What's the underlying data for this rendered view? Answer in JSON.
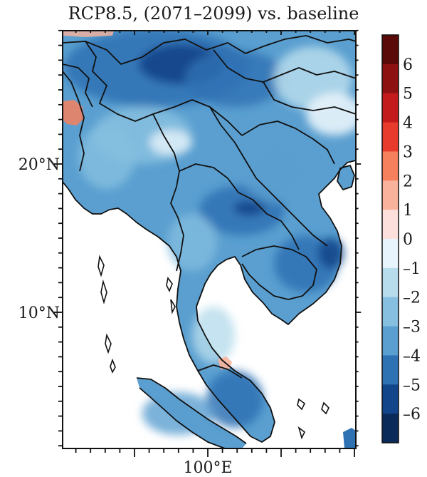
{
  "map": {
    "title": "RCP8.5, (2071–2099) vs. baseline",
    "lat_labels": [
      "20°N",
      "10°N"
    ],
    "lon_labels": [
      "100°E"
    ]
  },
  "colorbar": {
    "labels": [
      "6",
      "5",
      "4",
      "3",
      "2",
      "1",
      "0",
      "–1",
      "–2",
      "–3",
      "–4",
      "–5",
      "–6"
    ],
    "colors": [
      "#5b0a0a",
      "#8e1111",
      "#c31b1b",
      "#e83a2d",
      "#f4805e",
      "#f9b39c",
      "#fde0dc",
      "#e8f4fb",
      "#b7dcec",
      "#86bfe0",
      "#5a9fd0",
      "#2f72b4",
      "#12458a",
      "#0a2a5a"
    ]
  },
  "colors": {
    "land_base": "#5a9fd0",
    "ocean": "#ffffff"
  }
}
